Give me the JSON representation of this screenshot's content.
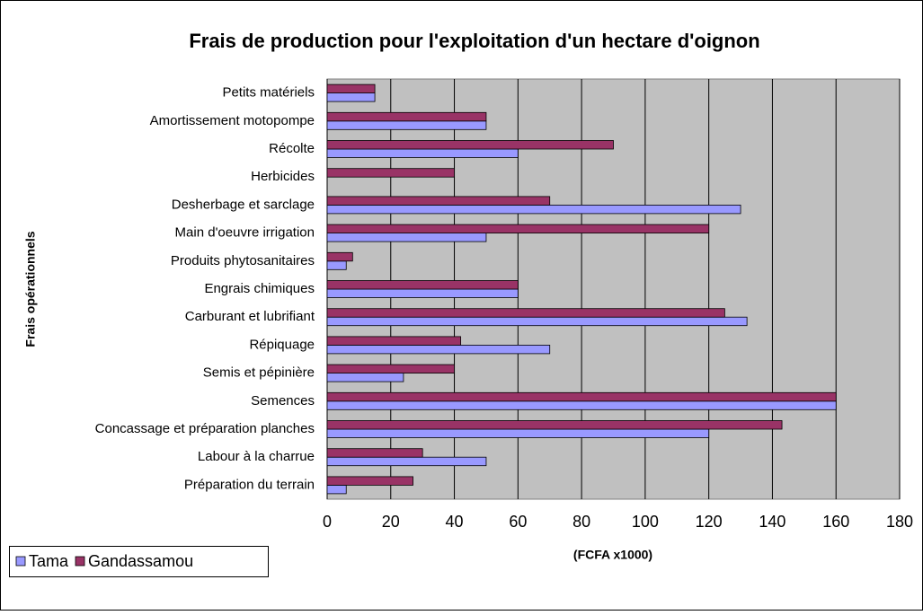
{
  "chart_data": {
    "type": "bar",
    "orientation": "horizontal",
    "title": "Frais de production pour l'exploitation d'un hectare d'oignon",
    "y_label": "Frais opérationnels",
    "x_label": "(FCFA x1000)",
    "categories": [
      "Préparation du terrain",
      "Labour à la charrue",
      "Concassage et préparation planches",
      "Semences",
      "Semis et pépinière",
      "Répiquage",
      "Carburant et lubrifiant",
      "Engrais chimiques",
      "Produits phytosanitaires",
      "Main d'oeuvre irrigation",
      "Desherbage et sarclage",
      "Herbicides",
      "Récolte",
      "Amortissement motopompe",
      "Petits matériels"
    ],
    "series": [
      {
        "name": "Tama",
        "color": "#9999ff",
        "values": [
          6,
          50,
          120,
          160,
          24,
          70,
          132,
          60,
          6,
          50,
          130,
          0,
          60,
          50,
          15
        ]
      },
      {
        "name": "Gandassamou",
        "color": "#993366",
        "values": [
          27,
          30,
          143,
          160,
          40,
          42,
          125,
          60,
          8,
          120,
          70,
          40,
          90,
          50,
          15
        ]
      }
    ],
    "xlim": [
      0,
      180
    ],
    "xticks": [
      0,
      20,
      40,
      60,
      80,
      100,
      120,
      140,
      160,
      180
    ],
    "grid": true,
    "legend": "bottom-left"
  }
}
